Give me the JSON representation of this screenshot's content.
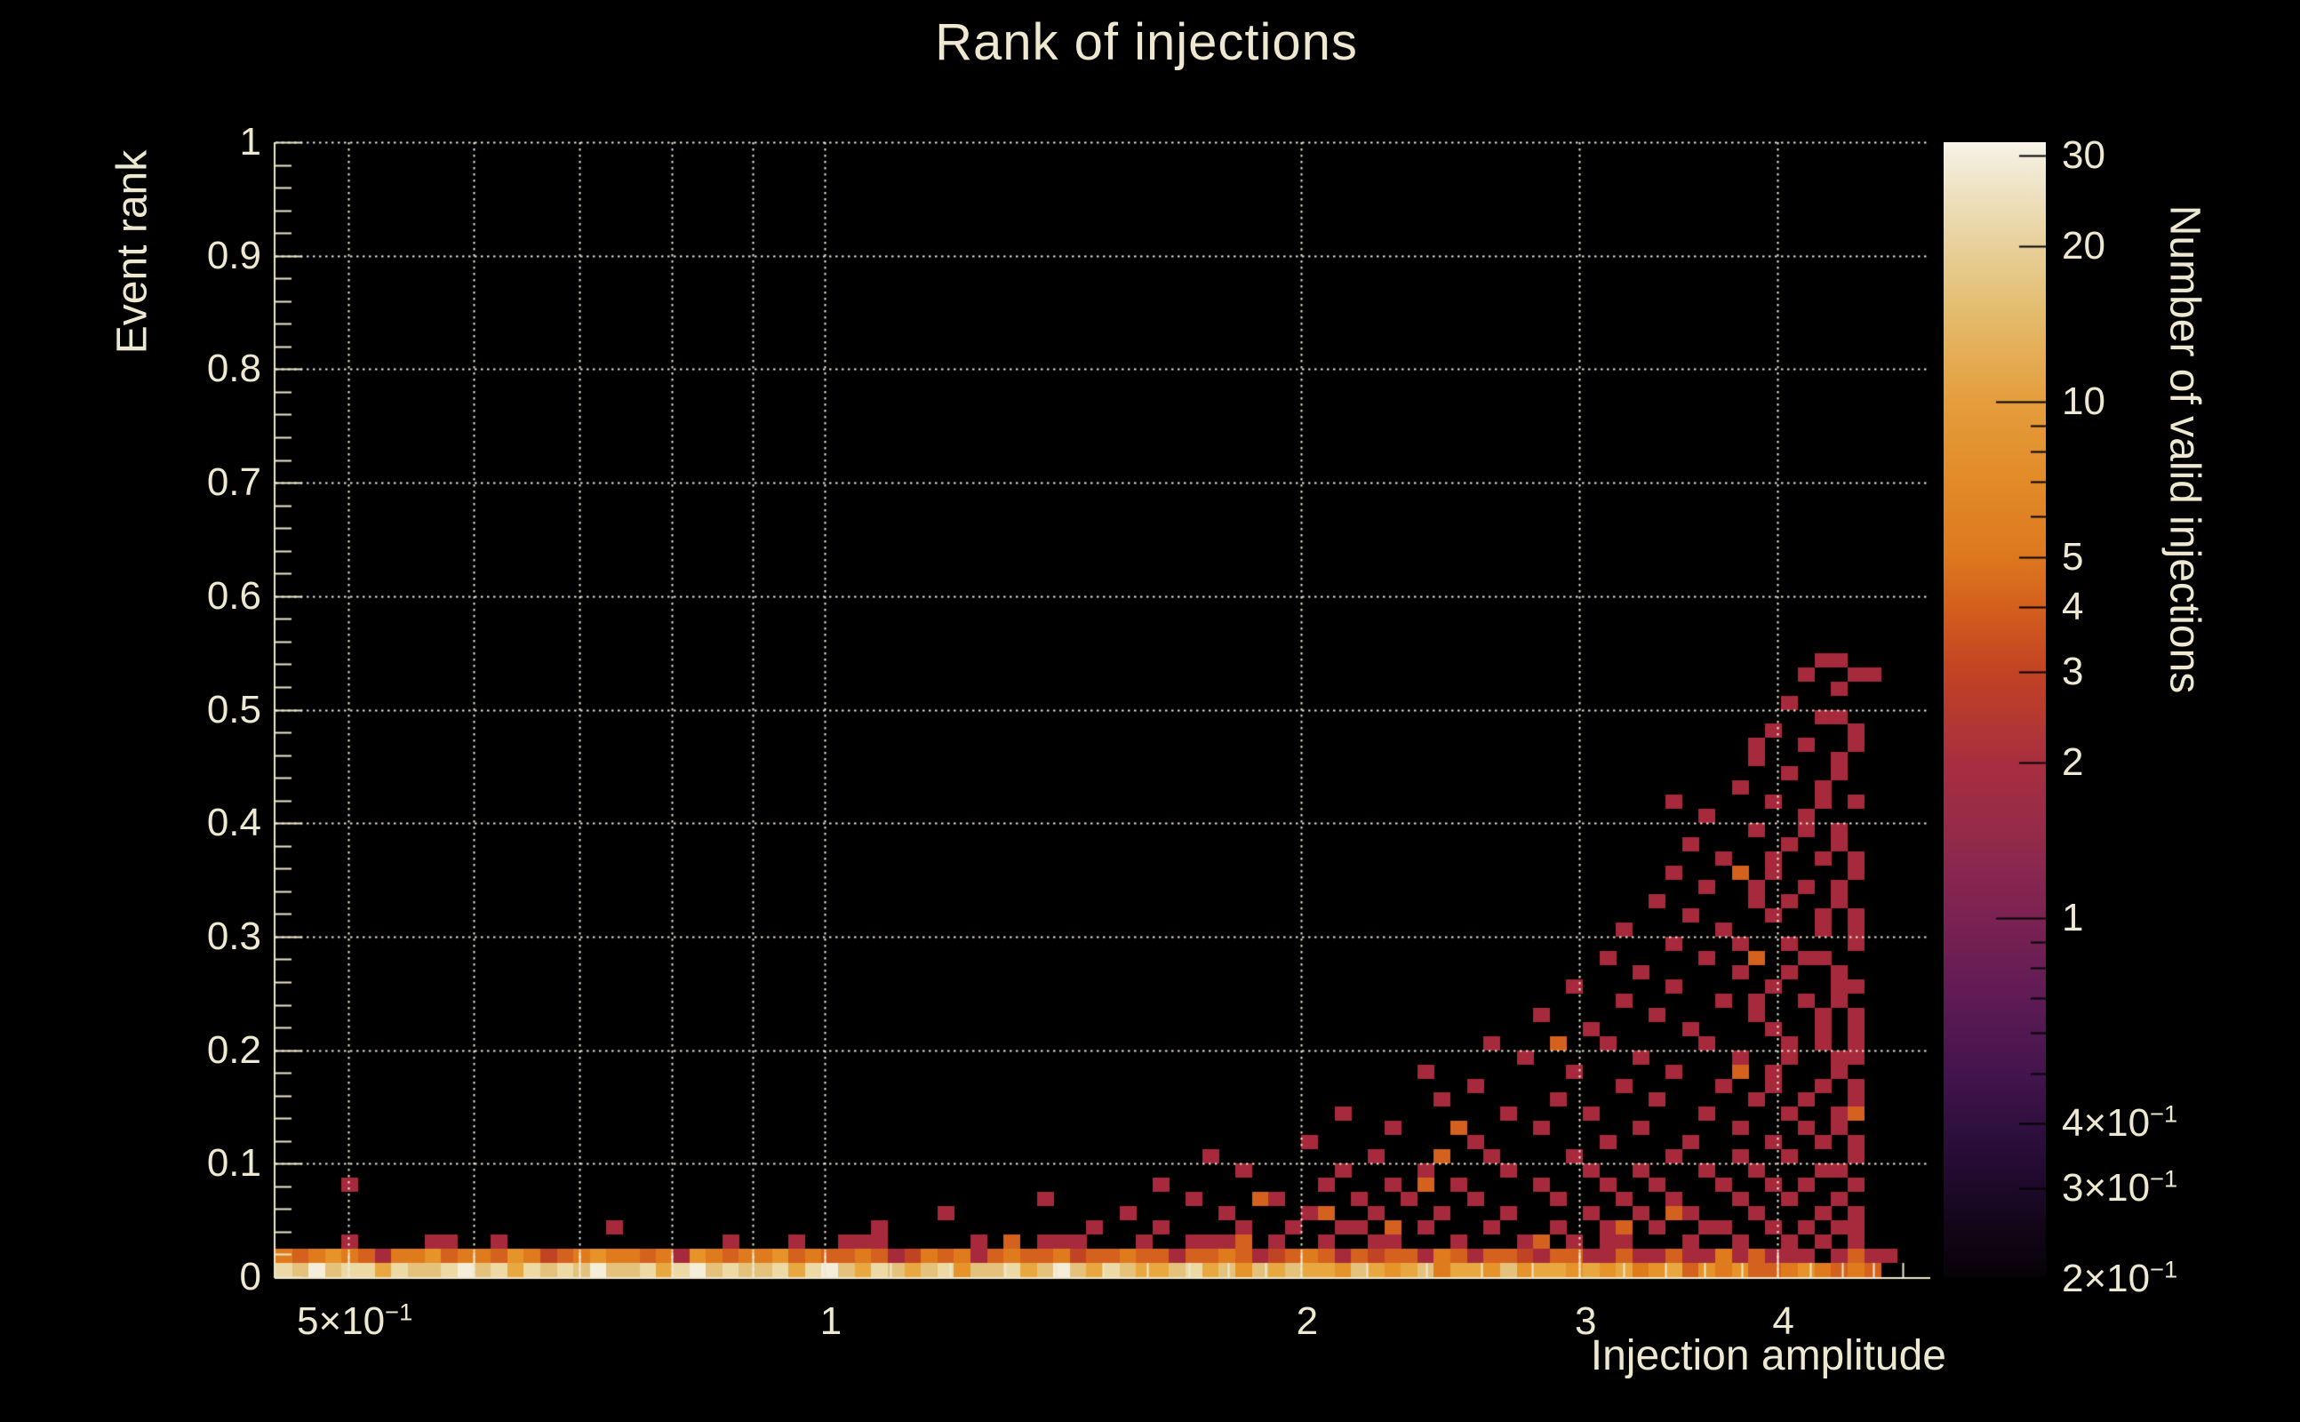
{
  "chart_data": {
    "type": "heatmap",
    "title": "Rank of injections",
    "xlabel": "Injection amplitude",
    "ylabel": "Event rank",
    "zlabel": "Number of valid injections",
    "x_scale": "log",
    "y_scale": "linear",
    "z_scale": "log",
    "xlim": [
      0.449,
      4.99
    ],
    "ylim": [
      0,
      1
    ],
    "zlim": [
      0.2,
      31.6
    ],
    "grid": true,
    "x_gridlines": [
      0.5,
      0.6,
      0.7,
      0.8,
      0.9,
      1,
      2,
      3,
      4
    ],
    "y_gridlines": [
      0.1,
      0.2,
      0.3,
      0.4,
      0.5,
      0.6,
      0.7,
      0.8,
      0.9,
      1.0
    ],
    "x_minor_ticks": [
      1.1,
      1.2,
      1.3,
      1.4,
      1.5,
      1.6,
      1.7,
      1.8,
      1.9,
      2.2,
      2.4,
      2.6,
      2.8,
      3.2,
      3.4,
      3.6,
      3.8,
      4.2,
      4.4,
      4.6,
      4.8
    ],
    "x_ticks": [
      {
        "v": 0.5,
        "text": "5×10",
        "sup": "−1"
      },
      {
        "v": 1,
        "text": "1",
        "sup": ""
      },
      {
        "v": 2,
        "text": "2",
        "sup": ""
      },
      {
        "v": 3,
        "text": "3",
        "sup": ""
      },
      {
        "v": 4,
        "text": "4",
        "sup": ""
      }
    ],
    "y_ticks": [
      {
        "v": 1.0,
        "text": "1"
      },
      {
        "v": 0.9,
        "text": "0.9"
      },
      {
        "v": 0.8,
        "text": "0.8"
      },
      {
        "v": 0.7,
        "text": "0.7"
      },
      {
        "v": 0.6,
        "text": "0.6"
      },
      {
        "v": 0.5,
        "text": "0.5"
      },
      {
        "v": 0.4,
        "text": "0.4"
      },
      {
        "v": 0.3,
        "text": "0.3"
      },
      {
        "v": 0.2,
        "text": "0.2"
      },
      {
        "v": 0.1,
        "text": "0.1"
      },
      {
        "v": 0.0,
        "text": "0"
      }
    ],
    "z_ticks": [
      {
        "v": 30,
        "text": "30",
        "sup": ""
      },
      {
        "v": 20,
        "text": "20",
        "sup": ""
      },
      {
        "v": 10,
        "text": "10",
        "sup": ""
      },
      {
        "v": 5,
        "text": "5",
        "sup": ""
      },
      {
        "v": 4,
        "text": "4",
        "sup": ""
      },
      {
        "v": 3,
        "text": "3",
        "sup": ""
      },
      {
        "v": 2,
        "text": "2",
        "sup": ""
      },
      {
        "v": 1,
        "text": "1",
        "sup": ""
      },
      {
        "v": 0.4,
        "text": "4×10",
        "sup": "−1"
      },
      {
        "v": 0.3,
        "text": "3×10",
        "sup": "−1"
      },
      {
        "v": 0.2,
        "text": "2×10",
        "sup": "−1"
      }
    ],
    "z_minor_ticks": [
      0.5,
      0.6,
      0.7,
      0.8,
      0.9,
      6,
      7,
      8,
      9
    ],
    "z_long_ticks": [
      1,
      10
    ],
    "colorbar_stops": [
      {
        "v": 31.6,
        "color": "#f8f4e8"
      },
      {
        "v": 30,
        "color": "#f3eedd"
      },
      {
        "v": 20,
        "color": "#e7d09a"
      },
      {
        "v": 15,
        "color": "#e3bc6e"
      },
      {
        "v": 10,
        "color": "#e59d3b"
      },
      {
        "v": 7,
        "color": "#e28a28"
      },
      {
        "v": 5,
        "color": "#dd781e"
      },
      {
        "v": 4,
        "color": "#d45f1d"
      },
      {
        "v": 3,
        "color": "#c24323"
      },
      {
        "v": 2,
        "color": "#a82e3f"
      },
      {
        "v": 1.5,
        "color": "#962b49"
      },
      {
        "v": 1,
        "color": "#7b2252"
      },
      {
        "v": 0.7,
        "color": "#5e1b54"
      },
      {
        "v": 0.5,
        "color": "#44144e"
      },
      {
        "v": 0.4,
        "color": "#31103f"
      },
      {
        "v": 0.3,
        "color": "#1d092a"
      },
      {
        "v": 0.25,
        "color": "#120617"
      },
      {
        "v": 0.2,
        "color": "#070208"
      }
    ],
    "bins": {
      "n_x": 100,
      "n_y": 80
    },
    "palette": {
      "1": "#8f2747",
      "2": "#a62a3c",
      "3": "#c04424",
      "4": "#d4611d",
      "5": "#e07b1d",
      "6": "#e69329",
      "7": "#e9a83f",
      "8": "#e4c27c",
      "9": "#ecd9a4",
      "w": "#f4edda"
    },
    "strip_rows": [
      "98w89979889w8979898w88979w8988979w8798789688978w8798778978687877687678577686776767567465644565454",
      "545654255645546534565545265455645445423545245445344544244542345424344254244324422422422524222.2422"
    ],
    "scatter_cells": [
      [
        4,
        2,
        2
      ],
      [
        9,
        2,
        2
      ],
      [
        10,
        2,
        2
      ],
      [
        13,
        2,
        2
      ],
      [
        27,
        2,
        2
      ],
      [
        31,
        2,
        2
      ],
      [
        34,
        2,
        2
      ],
      [
        35,
        2,
        2
      ],
      [
        36,
        2,
        2
      ],
      [
        42,
        2,
        2
      ],
      [
        44,
        2,
        4
      ],
      [
        46,
        2,
        2
      ],
      [
        47,
        2,
        2
      ],
      [
        48,
        2,
        2
      ],
      [
        52,
        2,
        2
      ],
      [
        55,
        2,
        2
      ],
      [
        56,
        2,
        2
      ],
      [
        57,
        2,
        2
      ],
      [
        58,
        2,
        4
      ],
      [
        60,
        2,
        2
      ],
      [
        63,
        2,
        2
      ],
      [
        66,
        2,
        2
      ],
      [
        67,
        2,
        2
      ],
      [
        71,
        2,
        2
      ],
      [
        75,
        2,
        2
      ],
      [
        76,
        2,
        4
      ],
      [
        78,
        2,
        2
      ],
      [
        80,
        2,
        2
      ],
      [
        81,
        2,
        2
      ],
      [
        85,
        2,
        2
      ],
      [
        88,
        2,
        2
      ],
      [
        91,
        2,
        2
      ],
      [
        93,
        2,
        2
      ],
      [
        95,
        2,
        2
      ],
      [
        20,
        3,
        2
      ],
      [
        36,
        3,
        2
      ],
      [
        49,
        3,
        2
      ],
      [
        53,
        3,
        2
      ],
      [
        58,
        3,
        2
      ],
      [
        61,
        3,
        2
      ],
      [
        64,
        3,
        2
      ],
      [
        65,
        3,
        2
      ],
      [
        67,
        3,
        4
      ],
      [
        69,
        3,
        2
      ],
      [
        73,
        3,
        2
      ],
      [
        77,
        3,
        2
      ],
      [
        80,
        3,
        2
      ],
      [
        81,
        3,
        4
      ],
      [
        83,
        3,
        2
      ],
      [
        86,
        3,
        2
      ],
      [
        87,
        3,
        2
      ],
      [
        90,
        3,
        2
      ],
      [
        92,
        3,
        2
      ],
      [
        94,
        3,
        2
      ],
      [
        95,
        3,
        2
      ],
      [
        40,
        4,
        2
      ],
      [
        51,
        4,
        2
      ],
      [
        57,
        4,
        2
      ],
      [
        62,
        4,
        2
      ],
      [
        63,
        4,
        4
      ],
      [
        66,
        4,
        2
      ],
      [
        70,
        4,
        2
      ],
      [
        74,
        4,
        2
      ],
      [
        79,
        4,
        2
      ],
      [
        82,
        4,
        2
      ],
      [
        84,
        4,
        4
      ],
      [
        85,
        4,
        2
      ],
      [
        89,
        4,
        2
      ],
      [
        93,
        4,
        2
      ],
      [
        95,
        4,
        2
      ],
      [
        46,
        5,
        2
      ],
      [
        55,
        5,
        2
      ],
      [
        59,
        5,
        4
      ],
      [
        60,
        5,
        2
      ],
      [
        65,
        5,
        2
      ],
      [
        68,
        5,
        2
      ],
      [
        72,
        5,
        2
      ],
      [
        77,
        5,
        2
      ],
      [
        81,
        5,
        2
      ],
      [
        84,
        5,
        2
      ],
      [
        88,
        5,
        2
      ],
      [
        91,
        5,
        2
      ],
      [
        94,
        5,
        2
      ],
      [
        4,
        6,
        2
      ],
      [
        53,
        6,
        2
      ],
      [
        63,
        6,
        2
      ],
      [
        67,
        6,
        2
      ],
      [
        69,
        6,
        4
      ],
      [
        71,
        6,
        2
      ],
      [
        76,
        6,
        2
      ],
      [
        80,
        6,
        2
      ],
      [
        83,
        6,
        2
      ],
      [
        87,
        6,
        2
      ],
      [
        90,
        6,
        2
      ],
      [
        92,
        6,
        2
      ],
      [
        95,
        6,
        2
      ],
      [
        58,
        7,
        2
      ],
      [
        64,
        7,
        2
      ],
      [
        69,
        7,
        2
      ],
      [
        74,
        7,
        2
      ],
      [
        79,
        7,
        2
      ],
      [
        82,
        7,
        2
      ],
      [
        86,
        7,
        2
      ],
      [
        89,
        7,
        2
      ],
      [
        93,
        7,
        2
      ],
      [
        94,
        7,
        2
      ],
      [
        56,
        8,
        2
      ],
      [
        66,
        8,
        2
      ],
      [
        70,
        8,
        4
      ],
      [
        73,
        8,
        2
      ],
      [
        78,
        8,
        2
      ],
      [
        84,
        8,
        2
      ],
      [
        88,
        8,
        2
      ],
      [
        91,
        8,
        2
      ],
      [
        95,
        8,
        2
      ],
      [
        62,
        9,
        2
      ],
      [
        72,
        9,
        2
      ],
      [
        80,
        9,
        2
      ],
      [
        85,
        9,
        2
      ],
      [
        90,
        9,
        2
      ],
      [
        93,
        9,
        2
      ],
      [
        95,
        9,
        2
      ],
      [
        67,
        10,
        2
      ],
      [
        71,
        10,
        4
      ],
      [
        76,
        10,
        2
      ],
      [
        82,
        10,
        2
      ],
      [
        88,
        10,
        2
      ],
      [
        92,
        10,
        2
      ],
      [
        94,
        10,
        2
      ],
      [
        64,
        11,
        2
      ],
      [
        74,
        11,
        2
      ],
      [
        79,
        11,
        2
      ],
      [
        86,
        11,
        2
      ],
      [
        91,
        11,
        2
      ],
      [
        94,
        11,
        2
      ],
      [
        95,
        11,
        4
      ],
      [
        70,
        12,
        2
      ],
      [
        77,
        12,
        2
      ],
      [
        83,
        12,
        2
      ],
      [
        89,
        12,
        2
      ],
      [
        92,
        12,
        2
      ],
      [
        95,
        12,
        2
      ],
      [
        72,
        13,
        2
      ],
      [
        81,
        13,
        2
      ],
      [
        87,
        13,
        2
      ],
      [
        90,
        13,
        2
      ],
      [
        93,
        13,
        2
      ],
      [
        95,
        13,
        2
      ],
      [
        69,
        14,
        2
      ],
      [
        78,
        14,
        2
      ],
      [
        84,
        14,
        2
      ],
      [
        88,
        14,
        4
      ],
      [
        90,
        14,
        2
      ],
      [
        94,
        14,
        2
      ],
      [
        75,
        15,
        2
      ],
      [
        82,
        15,
        2
      ],
      [
        88,
        15,
        2
      ],
      [
        91,
        15,
        2
      ],
      [
        94,
        15,
        2
      ],
      [
        95,
        15,
        2
      ],
      [
        73,
        16,
        2
      ],
      [
        77,
        16,
        4
      ],
      [
        80,
        16,
        2
      ],
      [
        86,
        16,
        2
      ],
      [
        91,
        16,
        2
      ],
      [
        93,
        16,
        2
      ],
      [
        95,
        16,
        2
      ],
      [
        79,
        17,
        2
      ],
      [
        85,
        17,
        2
      ],
      [
        90,
        17,
        2
      ],
      [
        93,
        17,
        2
      ],
      [
        95,
        17,
        2
      ],
      [
        76,
        18,
        2
      ],
      [
        83,
        18,
        2
      ],
      [
        89,
        18,
        2
      ],
      [
        93,
        18,
        2
      ],
      [
        95,
        18,
        2
      ],
      [
        81,
        19,
        2
      ],
      [
        87,
        19,
        2
      ],
      [
        89,
        19,
        2
      ],
      [
        92,
        19,
        2
      ],
      [
        94,
        19,
        2
      ],
      [
        78,
        20,
        2
      ],
      [
        84,
        20,
        2
      ],
      [
        90,
        20,
        2
      ],
      [
        94,
        20,
        2
      ],
      [
        95,
        20,
        2
      ],
      [
        82,
        21,
        2
      ],
      [
        88,
        21,
        2
      ],
      [
        91,
        21,
        2
      ],
      [
        94,
        21,
        2
      ],
      [
        80,
        22,
        2
      ],
      [
        86,
        22,
        2
      ],
      [
        89,
        22,
        4
      ],
      [
        92,
        22,
        2
      ],
      [
        93,
        22,
        2
      ],
      [
        84,
        23,
        2
      ],
      [
        88,
        23,
        2
      ],
      [
        91,
        23,
        2
      ],
      [
        95,
        23,
        2
      ],
      [
        81,
        24,
        2
      ],
      [
        87,
        24,
        2
      ],
      [
        93,
        24,
        2
      ],
      [
        95,
        24,
        2
      ],
      [
        85,
        25,
        2
      ],
      [
        90,
        25,
        2
      ],
      [
        93,
        25,
        2
      ],
      [
        95,
        25,
        2
      ],
      [
        83,
        26,
        2
      ],
      [
        89,
        26,
        2
      ],
      [
        91,
        26,
        2
      ],
      [
        94,
        26,
        2
      ],
      [
        86,
        27,
        2
      ],
      [
        89,
        27,
        2
      ],
      [
        92,
        27,
        2
      ],
      [
        94,
        27,
        2
      ],
      [
        84,
        28,
        2
      ],
      [
        88,
        28,
        4
      ],
      [
        90,
        28,
        2
      ],
      [
        95,
        28,
        2
      ],
      [
        87,
        29,
        2
      ],
      [
        90,
        29,
        2
      ],
      [
        93,
        29,
        2
      ],
      [
        95,
        29,
        2
      ],
      [
        85,
        30,
        2
      ],
      [
        91,
        30,
        2
      ],
      [
        94,
        30,
        2
      ],
      [
        89,
        31,
        2
      ],
      [
        92,
        31,
        2
      ],
      [
        94,
        31,
        2
      ],
      [
        86,
        32,
        2
      ],
      [
        92,
        32,
        2
      ],
      [
        84,
        33,
        2
      ],
      [
        90,
        33,
        2
      ],
      [
        93,
        33,
        2
      ],
      [
        95,
        33,
        2
      ],
      [
        88,
        34,
        2
      ],
      [
        93,
        34,
        2
      ],
      [
        91,
        35,
        2
      ],
      [
        94,
        35,
        2
      ],
      [
        89,
        36,
        2
      ],
      [
        94,
        36,
        2
      ],
      [
        89,
        37,
        2
      ],
      [
        92,
        37,
        2
      ],
      [
        95,
        37,
        2
      ],
      [
        90,
        38,
        2
      ],
      [
        95,
        38,
        2
      ],
      [
        93,
        39,
        2
      ],
      [
        94,
        39,
        2
      ],
      [
        91,
        40,
        2
      ],
      [
        94,
        41,
        2
      ],
      [
        92,
        42,
        2
      ],
      [
        95,
        42,
        2
      ],
      [
        96,
        42,
        2
      ],
      [
        93,
        43,
        2
      ],
      [
        94,
        43,
        2
      ]
    ]
  }
}
